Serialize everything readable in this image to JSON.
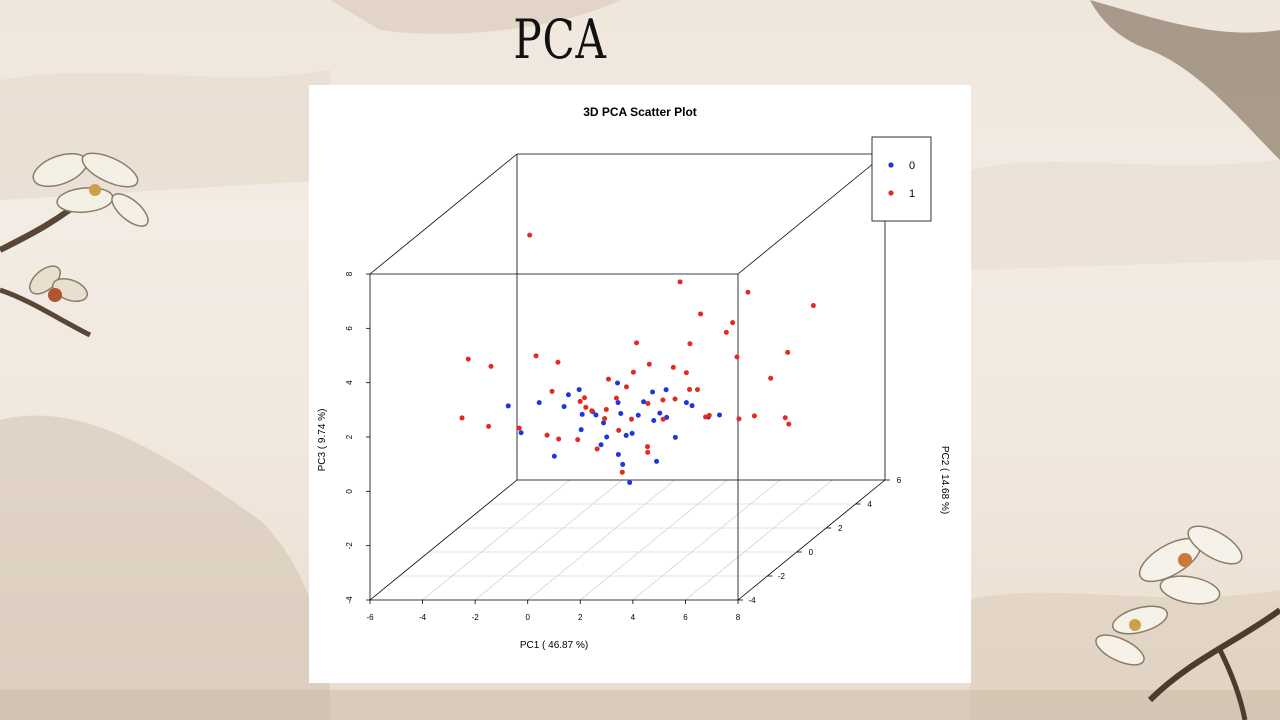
{
  "slide": {
    "title": "PCA"
  },
  "chart_data": {
    "type": "scatter",
    "title": "3D PCA Scatter Plot",
    "xlabel": "PC1 ( 46.87 %)",
    "ylabel": "PC2 ( 14.68 %)",
    "zlabel": "PC3 ( 9.74 %)",
    "xlim": [
      -6,
      8
    ],
    "ylim": [
      -4,
      6
    ],
    "zlim": [
      -4,
      8
    ],
    "xticks": [
      "-6",
      "-4",
      "-2",
      "0",
      "2",
      "4",
      "6",
      "8"
    ],
    "yticks": [
      "-4",
      "-2",
      "0",
      "2",
      "4",
      "6"
    ],
    "zticks": [
      "-4",
      "-2",
      "0",
      "2",
      "4",
      "6",
      "8"
    ],
    "grid": true,
    "legend_position": "top-right",
    "series": [
      {
        "name": "0",
        "color": "#1f35e0",
        "points": [
          [
            -3.2,
            0.4,
            1.2
          ],
          [
            -2.6,
            0.2,
            0.3
          ],
          [
            -1.8,
            0.0,
            1.5
          ],
          [
            -1.3,
            0.8,
            1.0
          ],
          [
            -0.8,
            0.2,
            1.7
          ],
          [
            -0.5,
            0.6,
            0.8
          ],
          [
            0.0,
            -0.5,
            2.2
          ],
          [
            0.2,
            0.8,
            0.4
          ],
          [
            0.4,
            -0.3,
            1.3
          ],
          [
            0.6,
            0.3,
            0.1
          ],
          [
            0.8,
            0.9,
            0.7
          ],
          [
            1.0,
            -0.8,
            0.3
          ],
          [
            1.2,
            0.0,
            1.5
          ],
          [
            1.4,
            0.6,
            0.1
          ],
          [
            1.6,
            -0.4,
            -0.6
          ],
          [
            1.8,
            0.3,
            0.9
          ],
          [
            2.0,
            1.0,
            0.4
          ],
          [
            2.2,
            -1.0,
            -1.0
          ],
          [
            2.4,
            0.2,
            1.8
          ],
          [
            2.6,
            0.8,
            0.6
          ],
          [
            2.9,
            -0.2,
            1.2
          ],
          [
            3.1,
            0.5,
            0.0
          ],
          [
            3.4,
            1.1,
            0.9
          ],
          [
            3.8,
            0.0,
            1.5
          ],
          [
            4.5,
            1.0,
            0.6
          ],
          [
            4.8,
            -0.3,
            1.1
          ],
          [
            0.9,
            0.5,
            2.0
          ],
          [
            1.5,
            1.2,
            1.0
          ],
          [
            -0.2,
            1.0,
            0.6
          ],
          [
            0.3,
            -0.9,
            0.9
          ],
          [
            1.1,
            0.2,
            -0.5
          ],
          [
            1.9,
            -0.7,
            0.6
          ],
          [
            2.3,
            1.3,
            1.4
          ],
          [
            -1.0,
            -0.4,
            -0.3
          ],
          [
            3.0,
            -0.6,
            -0.4
          ]
        ]
      },
      {
        "name": "1",
        "color": "#e8281e",
        "points": [
          [
            -4.5,
            0.0,
            3.1
          ],
          [
            -4.4,
            -0.6,
            1.2
          ],
          [
            -3.8,
            0.3,
            2.7
          ],
          [
            -3.5,
            -0.4,
            0.8
          ],
          [
            -2.2,
            0.5,
            3.0
          ],
          [
            -2.0,
            -1.0,
            1.0
          ],
          [
            -1.5,
            0.0,
            0.3
          ],
          [
            -1.2,
            -0.2,
            2.0
          ],
          [
            -0.8,
            1.0,
            1.1
          ],
          [
            -0.3,
            0.4,
            1.5
          ],
          [
            0.0,
            -0.6,
            0.4
          ],
          [
            0.2,
            0.0,
            1.2
          ],
          [
            0.5,
            0.6,
            2.1
          ],
          [
            0.8,
            -0.2,
            1.0
          ],
          [
            1.0,
            0.4,
            0.3
          ],
          [
            1.2,
            -0.8,
            1.6
          ],
          [
            1.4,
            0.9,
            3.3
          ],
          [
            1.6,
            0.2,
            0.8
          ],
          [
            1.8,
            -0.5,
            2.3
          ],
          [
            2.0,
            0.6,
            1.2
          ],
          [
            2.3,
            1.1,
            0.4
          ],
          [
            2.5,
            -0.2,
            3.0
          ],
          [
            2.8,
            0.9,
            2.4
          ],
          [
            3.0,
            -1.2,
            0.2
          ],
          [
            3.2,
            0.3,
            1.5
          ],
          [
            3.5,
            1.5,
            4.1
          ],
          [
            3.8,
            0.0,
            2.6
          ],
          [
            4.0,
            1.2,
            0.5
          ],
          [
            4.5,
            -0.5,
            2.2
          ],
          [
            5.0,
            1.0,
            4.0
          ],
          [
            5.5,
            0.4,
            3.0
          ],
          [
            6.0,
            1.8,
            1.6
          ],
          [
            6.5,
            -0.2,
            1.1
          ],
          [
            7.0,
            1.0,
            0.5
          ],
          [
            7.4,
            2.2,
            4.1
          ],
          [
            6.8,
            1.6,
            0.0
          ],
          [
            5.8,
            0.0,
            0.9
          ],
          [
            4.2,
            2.0,
            3.2
          ],
          [
            -3.0,
            1.5,
            7.0
          ],
          [
            3.0,
            1.0,
            5.5
          ],
          [
            2.6,
            -0.5,
            0.1
          ],
          [
            1.0,
            1.4,
            2.0
          ],
          [
            0.3,
            1.5,
            1.0
          ],
          [
            -0.5,
            -1.0,
            0.6
          ],
          [
            2.2,
            -1.5,
            -0.4
          ],
          [
            3.6,
            0.6,
            3.4
          ],
          [
            4.8,
            2.4,
            4.5
          ],
          [
            1.9,
            1.8,
            0.8
          ],
          [
            0.7,
            -1.3,
            1.9
          ],
          [
            -1.7,
            1.1,
            2.5
          ],
          [
            5.2,
            -1.2,
            1.5
          ],
          [
            2.8,
            2.0,
            1.1
          ],
          [
            1.3,
            -1.6,
            0.5
          ],
          [
            6.2,
            2.6,
            2.2
          ]
        ]
      }
    ]
  }
}
